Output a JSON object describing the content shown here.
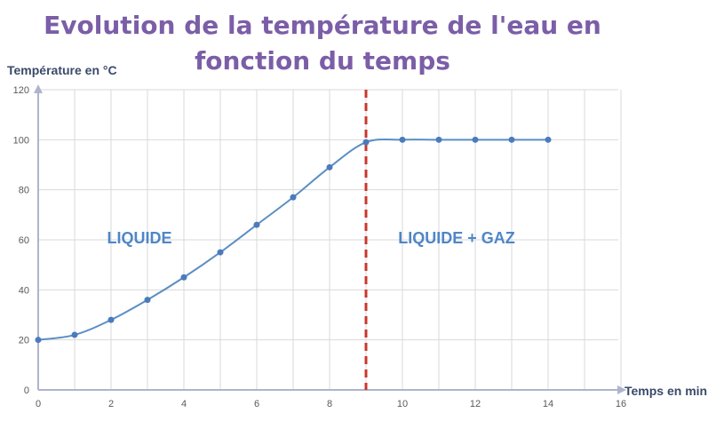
{
  "chart_data": {
    "type": "line",
    "title": "Evolution de la température de l'eau en fonction du temps",
    "title_lines": [
      "Evolution de la température de l'eau en",
      "fonction du temps"
    ],
    "xlabel": "Temps en min",
    "ylabel": "Température en °C",
    "xlim": [
      0,
      16
    ],
    "ylim": [
      0,
      120
    ],
    "x_ticks": [
      0,
      2,
      4,
      6,
      8,
      10,
      12,
      14,
      16
    ],
    "y_ticks": [
      0,
      20,
      40,
      60,
      80,
      100,
      120
    ],
    "grid": true,
    "x": [
      0,
      1,
      2,
      3,
      4,
      5,
      6,
      7,
      8,
      9,
      10,
      11,
      12,
      13,
      14
    ],
    "values": [
      20,
      22,
      28,
      36,
      45,
      55,
      66,
      77,
      89,
      99,
      100,
      100,
      100,
      100,
      100
    ],
    "phase_change_x": 9,
    "region_labels": [
      "LIQUIDE",
      "LIQUIDE + GAZ"
    ],
    "colors": {
      "line": "#5b8ec4",
      "marker": "#4a7bbd",
      "dashed_line": "#c8372d",
      "title": "#7b5ea7",
      "region_label": "#4f86c6",
      "axis": "#aeb4cc",
      "grid": "#d9d9d9"
    }
  }
}
